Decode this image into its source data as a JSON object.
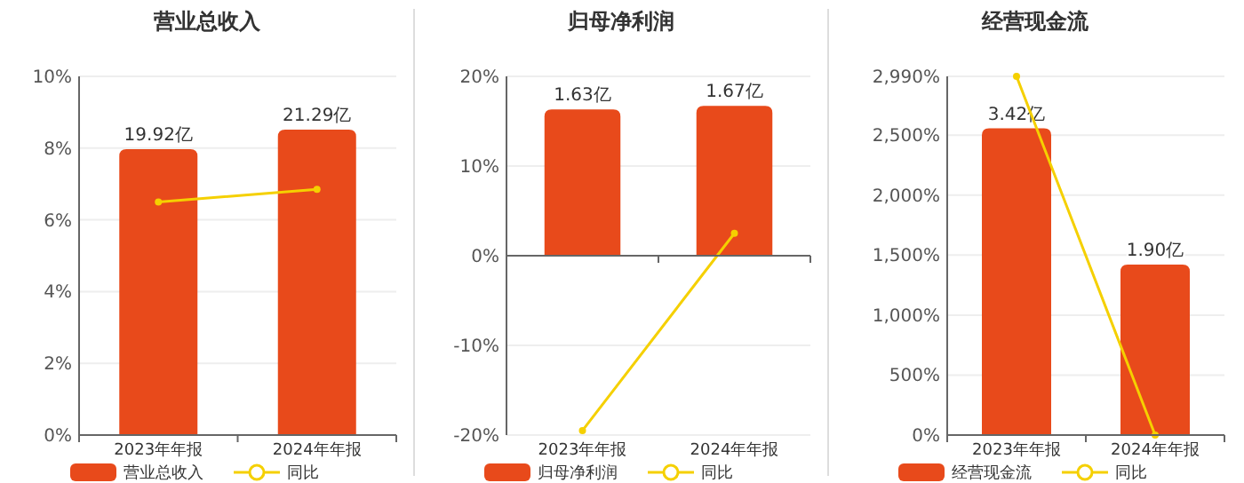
{
  "chart_data": [
    {
      "type": "bar",
      "title": "营业总收入",
      "categories": [
        "2023年年报",
        "2024年年报"
      ],
      "ylim": [
        0,
        10
      ],
      "yticks": [
        {
          "value": 0,
          "label": "0%"
        },
        {
          "value": 2,
          "label": "2%"
        },
        {
          "value": 4,
          "label": "4%"
        },
        {
          "value": 6,
          "label": "6%"
        },
        {
          "value": 8,
          "label": "8%"
        },
        {
          "value": 10,
          "label": "10%"
        }
      ],
      "y2lim": [
        0,
        25
      ],
      "grid": "y",
      "legend": "bottom",
      "marker": "circle",
      "series": [
        {
          "name": "营业总收入",
          "axis": "y2",
          "color": "#e84a1b",
          "values": [
            19.92,
            21.29
          ],
          "value_labels": [
            "19.92亿",
            "21.29亿"
          ]
        },
        {
          "name": "同比",
          "type": "line",
          "color": "#f5d000",
          "values": [
            6.5,
            6.85
          ]
        }
      ]
    },
    {
      "type": "bar",
      "title": "归母净利润",
      "categories": [
        "2023年年报",
        "2024年年报"
      ],
      "ylim": [
        -20,
        20
      ],
      "yticks": [
        {
          "value": -20,
          "label": "-20%"
        },
        {
          "value": -10,
          "label": "-10%"
        },
        {
          "value": 0,
          "label": "0%"
        },
        {
          "value": 10,
          "label": "10%"
        },
        {
          "value": 20,
          "label": "20%"
        }
      ],
      "y2lim": [
        -2,
        2
      ],
      "grid": "y",
      "legend": "bottom",
      "marker": "circle",
      "series": [
        {
          "name": "归母净利润",
          "axis": "y2",
          "color": "#e84a1b",
          "values": [
            1.63,
            1.67
          ],
          "value_labels": [
            "1.63亿",
            "1.67亿"
          ]
        },
        {
          "name": "同比",
          "type": "line",
          "color": "#f5d000",
          "values": [
            -19.5,
            2.5
          ]
        }
      ]
    },
    {
      "type": "bar",
      "title": "经营现金流",
      "categories": [
        "2023年年报",
        "2024年年报"
      ],
      "ylim": [
        0,
        2990
      ],
      "yticks": [
        {
          "value": 0,
          "label": "0%"
        },
        {
          "value": 500,
          "label": "500%"
        },
        {
          "value": 1000,
          "label": "1,000%"
        },
        {
          "value": 1500,
          "label": "1,500%"
        },
        {
          "value": 2000,
          "label": "2,000%"
        },
        {
          "value": 2500,
          "label": "2,500%"
        },
        {
          "value": 2990,
          "label": "2,990%"
        }
      ],
      "y2lim": [
        0,
        4
      ],
      "grid": "y",
      "legend": "bottom",
      "marker": "circle",
      "series": [
        {
          "name": "经营现金流",
          "axis": "y2",
          "color": "#e84a1b",
          "values": [
            3.42,
            1.9
          ],
          "value_labels": [
            "3.42亿",
            "1.90亿"
          ]
        },
        {
          "name": "同比",
          "type": "line",
          "color": "#f5d000",
          "values": [
            2990,
            0
          ]
        }
      ]
    }
  ]
}
